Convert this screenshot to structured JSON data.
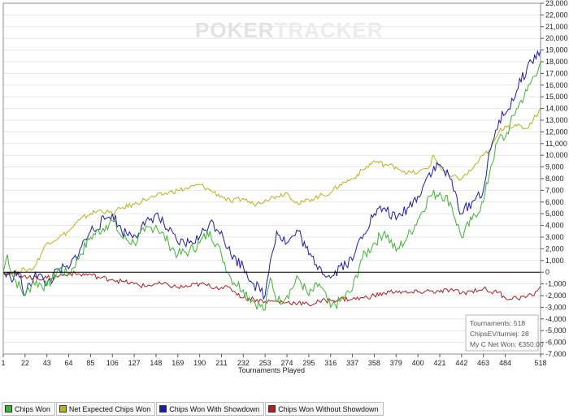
{
  "watermark": {
    "part1": "POKER",
    "part2": "TRACKER"
  },
  "info_box": {
    "line1": "Tournaments: 518",
    "line2": "ChipsEV/turniej: 28",
    "line3": "My C Net Won: €350.00"
  },
  "colors": {
    "chips_won": "#3cb531",
    "net_expected": "#b9b217",
    "with_showdown": "#1c1ca8",
    "without_showdown": "#b02020",
    "zero_line": "#000000",
    "grid": "#e6e6e6"
  },
  "legend": [
    {
      "label": "Chips Won",
      "color": "#3cb531"
    },
    {
      "label": "Net Expected Chips Won",
      "color": "#b9b217"
    },
    {
      "label": "Chips Won With Showdown",
      "color": "#1c1ca8"
    },
    {
      "label": "Chips Won Without Showdown",
      "color": "#b02020"
    }
  ],
  "chart_data": {
    "type": "line",
    "xlabel": "Tournaments Played",
    "ylabel": "",
    "xlim": [
      1,
      518
    ],
    "ylim": [
      -7000,
      23000
    ],
    "x_ticks": [
      "1",
      "22",
      "43",
      "64",
      "85",
      "106",
      "127",
      "148",
      "169",
      "190",
      "211",
      "232",
      "253",
      "274",
      "295",
      "316",
      "337",
      "358",
      "379",
      "400",
      "421",
      "442",
      "463",
      "484",
      "518"
    ],
    "y_ticks": [
      "23,000",
      "22,000",
      "21,000",
      "20,000",
      "19,000",
      "18,000",
      "17,000",
      "16,000",
      "15,000",
      "14,000",
      "13,000",
      "12,000",
      "11,000",
      "10,000",
      "9,000",
      "8,000",
      "7,000",
      "6,000",
      "5,000",
      "4,000",
      "3,000",
      "2,000",
      "1,000",
      "0",
      "-1,000",
      "-2,000",
      "-3,000",
      "-4,000",
      "-5,000",
      "-6,000",
      "-7,000"
    ],
    "grid": true,
    "legend_position": "bottom",
    "series": [
      {
        "name": "Chips Won",
        "color": "#3cb531",
        "points": [
          [
            1,
            0
          ],
          [
            5,
            1500
          ],
          [
            10,
            -300
          ],
          [
            22,
            -2000
          ],
          [
            30,
            -800
          ],
          [
            43,
            -1200
          ],
          [
            55,
            300
          ],
          [
            64,
            -200
          ],
          [
            75,
            1500
          ],
          [
            85,
            3000
          ],
          [
            100,
            4000
          ],
          [
            106,
            4400
          ],
          [
            115,
            3000
          ],
          [
            127,
            2500
          ],
          [
            137,
            3500
          ],
          [
            148,
            4000
          ],
          [
            160,
            2500
          ],
          [
            169,
            1500
          ],
          [
            180,
            1800
          ],
          [
            190,
            2500
          ],
          [
            200,
            3500
          ],
          [
            211,
            1500
          ],
          [
            220,
            -500
          ],
          [
            232,
            -1500
          ],
          [
            242,
            -2500
          ],
          [
            253,
            -3200
          ],
          [
            258,
            -500
          ],
          [
            265,
            -2500
          ],
          [
            274,
            -2000
          ],
          [
            285,
            -500
          ],
          [
            295,
            -2000
          ],
          [
            305,
            -1000
          ],
          [
            316,
            -3000
          ],
          [
            325,
            -2500
          ],
          [
            337,
            -1500
          ],
          [
            345,
            1000
          ],
          [
            358,
            2500
          ],
          [
            368,
            3500
          ],
          [
            379,
            1800
          ],
          [
            390,
            3000
          ],
          [
            400,
            4500
          ],
          [
            411,
            6500
          ],
          [
            421,
            6800
          ],
          [
            431,
            6000
          ],
          [
            442,
            3000
          ],
          [
            452,
            4500
          ],
          [
            463,
            6000
          ],
          [
            470,
            9000
          ],
          [
            478,
            11500
          ],
          [
            484,
            11500
          ],
          [
            495,
            14000
          ],
          [
            505,
            15500
          ],
          [
            518,
            18000
          ]
        ]
      },
      {
        "name": "Net Expected Chips Won",
        "color": "#b9b217",
        "points": [
          [
            1,
            0
          ],
          [
            10,
            -100
          ],
          [
            22,
            200
          ],
          [
            30,
            300
          ],
          [
            43,
            2500
          ],
          [
            55,
            3000
          ],
          [
            64,
            3500
          ],
          [
            75,
            4500
          ],
          [
            85,
            5000
          ],
          [
            95,
            5300
          ],
          [
            106,
            5000
          ],
          [
            115,
            5500
          ],
          [
            127,
            5800
          ],
          [
            137,
            6200
          ],
          [
            148,
            6500
          ],
          [
            160,
            6800
          ],
          [
            169,
            7000
          ],
          [
            180,
            7200
          ],
          [
            190,
            7500
          ],
          [
            200,
            7000
          ],
          [
            211,
            6500
          ],
          [
            220,
            6000
          ],
          [
            232,
            6300
          ],
          [
            242,
            5800
          ],
          [
            253,
            6200
          ],
          [
            264,
            6500
          ],
          [
            274,
            6800
          ],
          [
            285,
            5800
          ],
          [
            295,
            6200
          ],
          [
            305,
            6500
          ],
          [
            316,
            6800
          ],
          [
            325,
            7500
          ],
          [
            337,
            8000
          ],
          [
            348,
            8800
          ],
          [
            358,
            9500
          ],
          [
            368,
            9200
          ],
          [
            379,
            9000
          ],
          [
            390,
            8500
          ],
          [
            400,
            8500
          ],
          [
            411,
            9000
          ],
          [
            415,
            10000
          ],
          [
            421,
            9000
          ],
          [
            431,
            8200
          ],
          [
            442,
            8000
          ],
          [
            452,
            8800
          ],
          [
            463,
            10000
          ],
          [
            470,
            10500
          ],
          [
            478,
            12000
          ],
          [
            484,
            12500
          ],
          [
            495,
            12500
          ],
          [
            505,
            12300
          ],
          [
            518,
            14000
          ]
        ]
      },
      {
        "name": "Chips Won With Showdown",
        "color": "#1c1ca8",
        "points": [
          [
            1,
            0
          ],
          [
            8,
            -500
          ],
          [
            15,
            0
          ],
          [
            22,
            -2000
          ],
          [
            32,
            0
          ],
          [
            43,
            -1000
          ],
          [
            55,
            200
          ],
          [
            64,
            300
          ],
          [
            75,
            2000
          ],
          [
            85,
            3500
          ],
          [
            100,
            4600
          ],
          [
            106,
            5000
          ],
          [
            115,
            3500
          ],
          [
            127,
            3200
          ],
          [
            137,
            4000
          ],
          [
            148,
            5000
          ],
          [
            160,
            3500
          ],
          [
            169,
            2500
          ],
          [
            180,
            2500
          ],
          [
            190,
            3000
          ],
          [
            200,
            4300
          ],
          [
            211,
            3500
          ],
          [
            220,
            1500
          ],
          [
            232,
            500
          ],
          [
            242,
            -1000
          ],
          [
            253,
            -2000
          ],
          [
            258,
            1000
          ],
          [
            264,
            3500
          ],
          [
            274,
            2500
          ],
          [
            285,
            3500
          ],
          [
            295,
            1500
          ],
          [
            305,
            500
          ],
          [
            316,
            -500
          ],
          [
            325,
            500
          ],
          [
            337,
            1000
          ],
          [
            345,
            3000
          ],
          [
            358,
            5000
          ],
          [
            368,
            5500
          ],
          [
            379,
            4500
          ],
          [
            390,
            5500
          ],
          [
            400,
            6500
          ],
          [
            411,
            8500
          ],
          [
            421,
            9200
          ],
          [
            431,
            8000
          ],
          [
            442,
            5000
          ],
          [
            452,
            6000
          ],
          [
            463,
            7000
          ],
          [
            470,
            10500
          ],
          [
            478,
            13000
          ],
          [
            484,
            13500
          ],
          [
            495,
            15500
          ],
          [
            505,
            17500
          ],
          [
            518,
            19000
          ]
        ]
      },
      {
        "name": "Chips Won Without Showdown",
        "color": "#b02020",
        "points": [
          [
            1,
            0
          ],
          [
            10,
            -100
          ],
          [
            22,
            -300
          ],
          [
            30,
            -500
          ],
          [
            43,
            -500
          ],
          [
            55,
            -300
          ],
          [
            64,
            -100
          ],
          [
            75,
            -200
          ],
          [
            85,
            -200
          ],
          [
            95,
            -500
          ],
          [
            106,
            -600
          ],
          [
            115,
            -800
          ],
          [
            127,
            -1000
          ],
          [
            137,
            -1200
          ],
          [
            148,
            -1000
          ],
          [
            160,
            -1100
          ],
          [
            169,
            -1300
          ],
          [
            180,
            -1200
          ],
          [
            190,
            -1000
          ],
          [
            200,
            -1200
          ],
          [
            211,
            -1300
          ],
          [
            220,
            -1400
          ],
          [
            232,
            -2200
          ],
          [
            242,
            -2300
          ],
          [
            253,
            -2500
          ],
          [
            264,
            -2500
          ],
          [
            274,
            -2600
          ],
          [
            285,
            -2600
          ],
          [
            295,
            -2800
          ],
          [
            305,
            -2500
          ],
          [
            316,
            -2400
          ],
          [
            325,
            -2300
          ],
          [
            337,
            -2300
          ],
          [
            348,
            -2200
          ],
          [
            358,
            -2000
          ],
          [
            368,
            -1800
          ],
          [
            379,
            -1600
          ],
          [
            390,
            -1800
          ],
          [
            400,
            -1700
          ],
          [
            411,
            -1600
          ],
          [
            421,
            -1700
          ],
          [
            431,
            -1500
          ],
          [
            442,
            -1800
          ],
          [
            452,
            -1600
          ],
          [
            463,
            -1400
          ],
          [
            470,
            -1700
          ],
          [
            478,
            -1700
          ],
          [
            484,
            -2200
          ],
          [
            495,
            -2200
          ],
          [
            505,
            -2100
          ],
          [
            510,
            -2000
          ],
          [
            518,
            -1200
          ]
        ]
      }
    ]
  }
}
